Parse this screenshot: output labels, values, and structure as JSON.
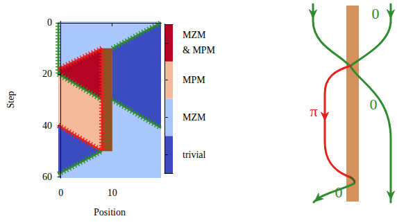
{
  "chart_data": {
    "type": "heatmap",
    "x_label": "Position",
    "y_label": "Step",
    "xlim": [
      -0.5,
      19.5
    ],
    "xticks": [
      0,
      10
    ],
    "ylim": [
      60.5,
      -0.5
    ],
    "yticks": [
      0,
      20,
      40,
      60
    ],
    "colorbar": {
      "categories": [
        "trivial",
        "MZM",
        "MPM",
        "MZM & MPM"
      ],
      "colors": [
        "#3b4cc0",
        "#aac7fd",
        "#f5b99b",
        "#b40426"
      ]
    },
    "regions": [
      {
        "phase": "MZM",
        "polygon": [
          [
            -0.5,
            -0.5
          ],
          [
            19.5,
            -0.5
          ],
          [
            19.5,
            0
          ],
          [
            10,
            10
          ],
          [
            8,
            10
          ],
          [
            -0.5,
            18
          ]
        ]
      },
      {
        "phase": "MZM & MPM",
        "polygon": [
          [
            -0.5,
            18
          ],
          [
            8,
            10
          ],
          [
            8,
            30
          ],
          [
            -0.5,
            20
          ]
        ]
      },
      {
        "phase": "MPM",
        "polygon": [
          [
            -0.5,
            20
          ],
          [
            8,
            30
          ],
          [
            8,
            50
          ],
          [
            -0.5,
            40
          ]
        ]
      },
      {
        "phase": "trivial",
        "polygon": [
          [
            -0.5,
            40
          ],
          [
            8,
            50
          ],
          [
            -0.5,
            59
          ]
        ]
      },
      {
        "phase": "trivial",
        "polygon": [
          [
            10,
            10
          ],
          [
            19.5,
            0
          ],
          [
            19.5,
            41
          ],
          [
            10,
            30
          ]
        ]
      },
      {
        "phase": "MZM",
        "polygon": [
          [
            10,
            30
          ],
          [
            19.5,
            41
          ],
          [
            19.5,
            60.5
          ],
          [
            -0.5,
            60.5
          ],
          [
            -0.5,
            59
          ],
          [
            8,
            50
          ],
          [
            10,
            50
          ]
        ]
      }
    ],
    "defect": {
      "color": "#8e5225",
      "polygon": [
        [
          8,
          10
        ],
        [
          10,
          10
        ],
        [
          10,
          50
        ],
        [
          8,
          50
        ]
      ]
    },
    "edges": [
      {
        "color": "#2e8b2e",
        "points": [
          [
            -0.5,
            0
          ],
          [
            -0.5,
            20
          ]
        ]
      },
      {
        "color": "#e8201c",
        "points": [
          [
            -0.5,
            18
          ],
          [
            8,
            10
          ]
        ]
      },
      {
        "color": "#2e8b2e",
        "points": [
          [
            -0.5,
            20
          ],
          [
            8,
            30
          ]
        ]
      },
      {
        "color": "#e8201c",
        "points": [
          [
            -0.5,
            40
          ],
          [
            8,
            50
          ]
        ]
      },
      {
        "color": "#2e8b2e",
        "points": [
          [
            -0.5,
            59
          ],
          [
            8,
            50
          ]
        ]
      },
      {
        "color": "#2e8b2e",
        "points": [
          [
            10,
            10
          ],
          [
            19.5,
            0
          ]
        ]
      },
      {
        "color": "#2e8b2e",
        "points": [
          [
            10,
            30
          ],
          [
            19.5,
            41
          ]
        ]
      },
      {
        "color": "#e8201c",
        "points": [
          [
            8,
            10
          ],
          [
            8,
            50
          ]
        ]
      }
    ]
  },
  "diagram": {
    "bar_color": "#d4915e",
    "labels": [
      {
        "text": "0",
        "color": "#2e8b2e"
      },
      {
        "text": "0",
        "color": "#2e8b2e"
      },
      {
        "text": "π",
        "color": "#e8201c"
      },
      {
        "text": "0",
        "color": "#2e8b2e"
      }
    ]
  }
}
